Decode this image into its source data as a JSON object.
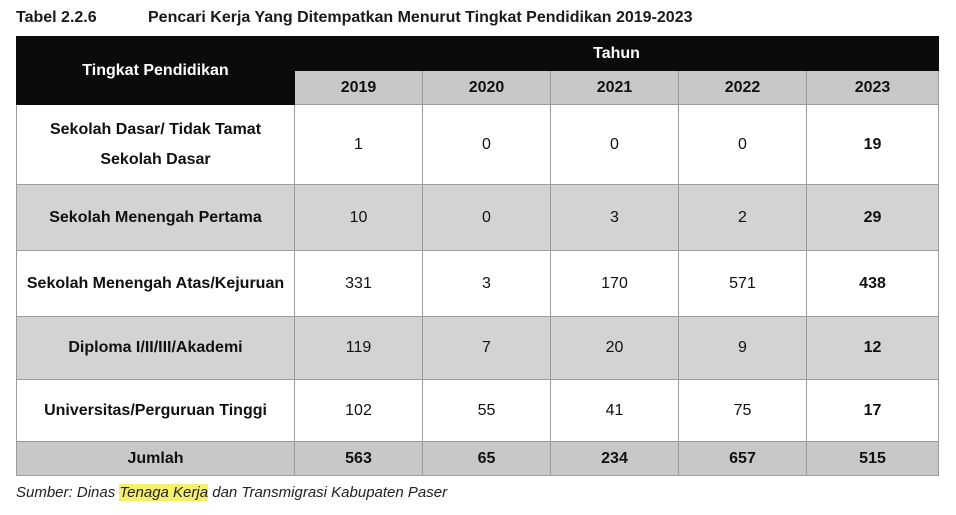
{
  "caption": {
    "number": "Tabel 2.2.6",
    "title": "Pencari Kerja Yang Ditempatkan Menurut Tingkat Pendidikan 2019-2023"
  },
  "table": {
    "row_header": "Tingkat Pendidikan",
    "group_header": "Tahun",
    "years": [
      "2019",
      "2020",
      "2021",
      "2022",
      "2023"
    ],
    "rows": [
      {
        "label": "Sekolah Dasar/ Tidak Tamat Sekolah Dasar",
        "values": [
          "1",
          "0",
          "0",
          "0",
          "19"
        ]
      },
      {
        "label": "Sekolah Menengah Pertama",
        "values": [
          "10",
          "0",
          "3",
          "2",
          "29"
        ]
      },
      {
        "label": "Sekolah Menengah Atas/Kejuruan",
        "values": [
          "331",
          "3",
          "170",
          "571",
          "438"
        ]
      },
      {
        "label": "Diploma I/II/III/Akademi",
        "values": [
          "119",
          "7",
          "20",
          "9",
          "12"
        ]
      },
      {
        "label": "Universitas/Perguruan Tinggi",
        "values": [
          "102",
          "55",
          "41",
          "75",
          "17"
        ]
      }
    ],
    "total": {
      "label": "Jumlah",
      "values": [
        "563",
        "65",
        "234",
        "657",
        "515"
      ]
    }
  },
  "source": {
    "prefix": "Sumber: Dinas ",
    "highlight": "Tenaga Kerja",
    "suffix": " dan Transmigrasi Kabupaten Paser"
  },
  "colors": {
    "header_black": "#0b0b0b",
    "header_gray": "#c8c8c8",
    "row_gray": "#d3d3d3",
    "highlight": "#f5f06a"
  }
}
